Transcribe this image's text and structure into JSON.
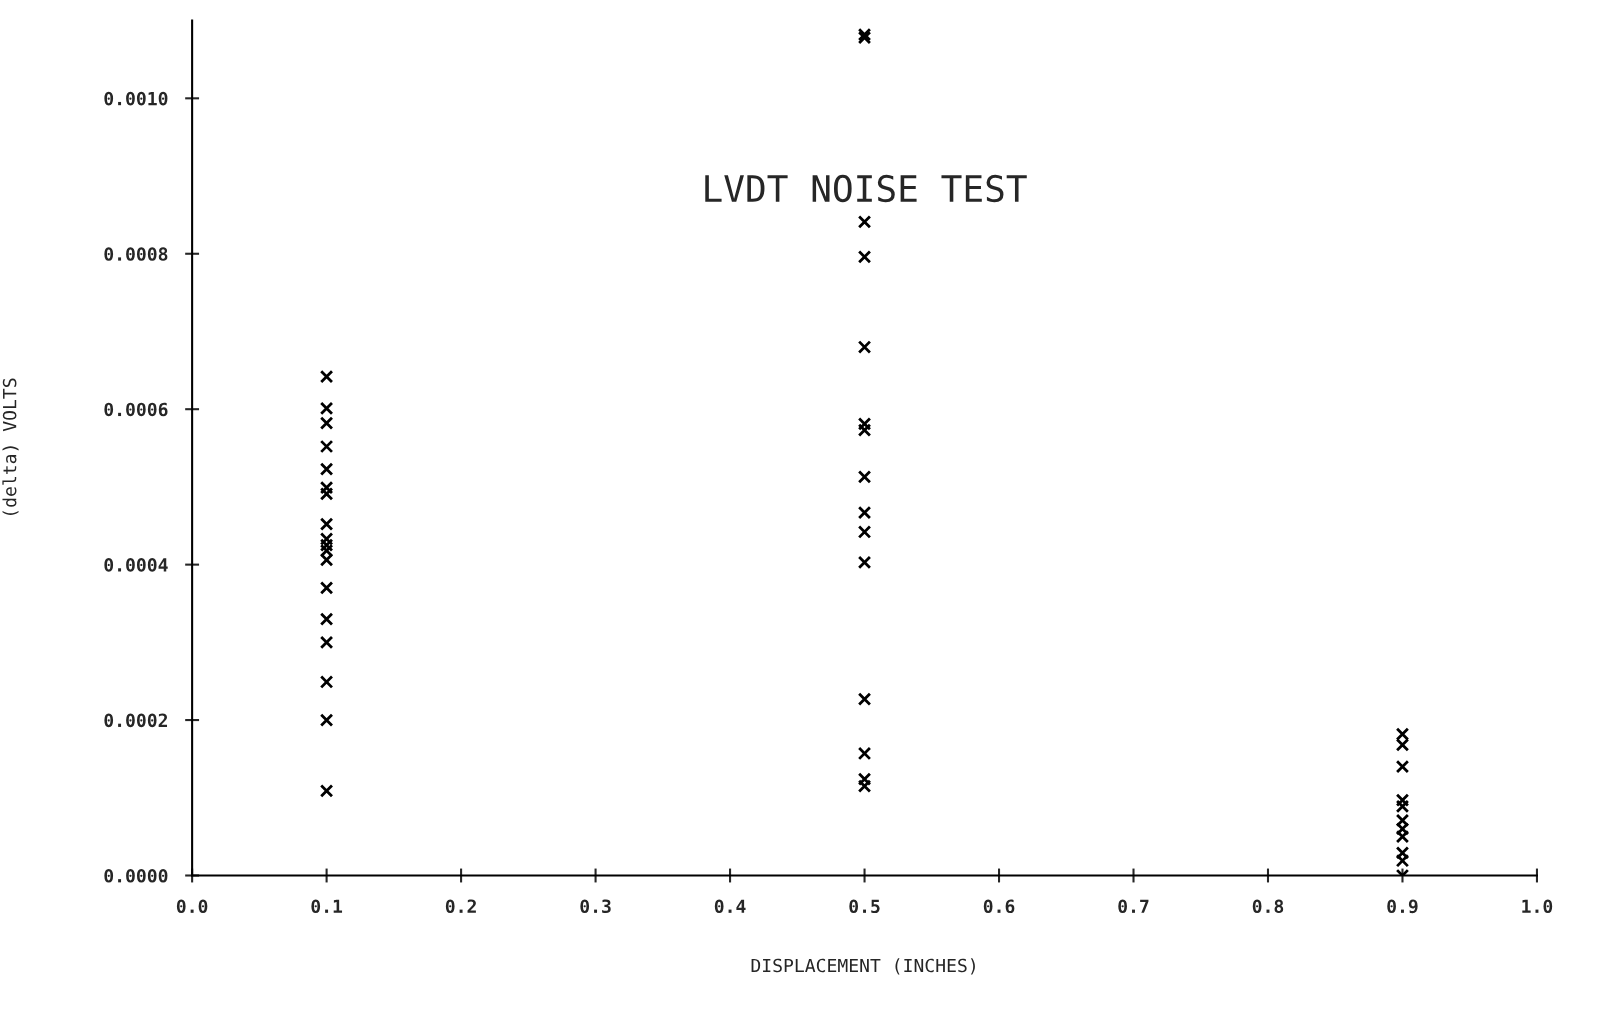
{
  "chart_data": {
    "type": "scatter",
    "title": "LVDT NOISE TEST",
    "xlabel": "DISPLACEMENT (INCHES)",
    "ylabel": "(delta) VOLTS",
    "marker": "cross",
    "grid": false,
    "legend": false,
    "series": [
      {
        "color": "#000000",
        "x": [
          0.1,
          0.1,
          0.1,
          0.1,
          0.1,
          0.1,
          0.1,
          0.1,
          0.1,
          0.1,
          0.1,
          0.1,
          0.1,
          0.1,
          0.1,
          0.1,
          0.1,
          0.1
        ],
        "values": [
          0.000642,
          0.000601,
          0.000582,
          0.000552,
          0.000523,
          0.000499,
          0.000491,
          0.000452,
          0.000433,
          0.000425,
          0.000418,
          0.000406,
          0.00037,
          0.00033,
          0.0003,
          0.000249,
          0.0002,
          0.000109
        ]
      },
      {
        "color": "#000000",
        "x": [
          0.5,
          0.5,
          0.5,
          0.5,
          0.5,
          0.5,
          0.5,
          0.5,
          0.5,
          0.5,
          0.5,
          0.5,
          0.5,
          0.5,
          0.5
        ],
        "values": [
          0.001082,
          0.001078,
          0.000841,
          0.000796,
          0.00068,
          0.000581,
          0.000573,
          0.000513,
          0.000467,
          0.000442,
          0.000403,
          0.000227,
          0.000157,
          0.000124,
          0.000115
        ]
      },
      {
        "color": "#000000",
        "x": [
          0.9,
          0.9,
          0.9,
          0.9,
          0.9,
          0.9,
          0.9,
          0.9,
          0.9,
          0.9,
          0.9
        ],
        "values": [
          0.000182,
          0.000168,
          0.00014,
          9.7e-05,
          8.9e-05,
          7.1e-05,
          6e-05,
          5e-05,
          2.9e-05,
          1.9e-05,
          0.0
        ]
      }
    ],
    "xlim": [
      0,
      1
    ],
    "ylim": [
      0,
      0.0011
    ],
    "xticks": [
      {
        "value": 0,
        "label": "0.0"
      },
      {
        "value": 0.1,
        "label": "0.1"
      },
      {
        "value": 0.2,
        "label": "0.2"
      },
      {
        "value": 0.3,
        "label": "0.3"
      },
      {
        "value": 0.4,
        "label": "0.4"
      },
      {
        "value": 0.5,
        "label": "0.5"
      },
      {
        "value": 0.6,
        "label": "0.6"
      },
      {
        "value": 0.7,
        "label": "0.7"
      },
      {
        "value": 0.8,
        "label": "0.8"
      },
      {
        "value": 0.9,
        "label": "0.9"
      },
      {
        "value": 1,
        "label": "1.0"
      }
    ],
    "yticks": [
      {
        "value": 0,
        "label": "0.0000"
      },
      {
        "value": 0.0002,
        "label": "0.0002"
      },
      {
        "value": 0.0004,
        "label": "0.0004"
      },
      {
        "value": 0.0006,
        "label": "0.0006"
      },
      {
        "value": 0.0008,
        "label": "0.0008"
      },
      {
        "value": 0.001,
        "label": "0.0010"
      }
    ]
  }
}
